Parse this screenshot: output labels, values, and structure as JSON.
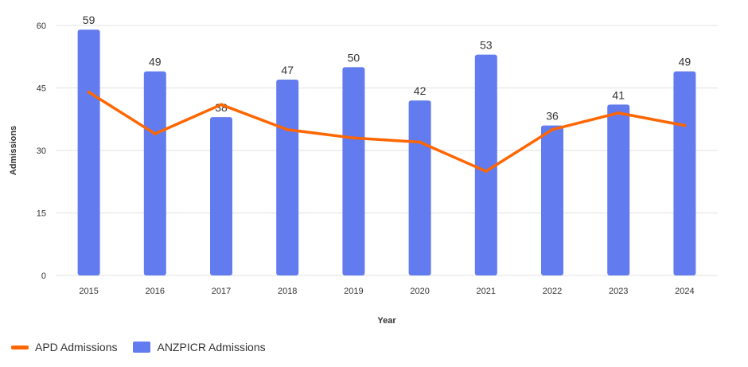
{
  "chart_data": {
    "type": "bar+line",
    "categories": [
      "2015",
      "2016",
      "2017",
      "2018",
      "2019",
      "2020",
      "2021",
      "2022",
      "2023",
      "2024"
    ],
    "series": [
      {
        "name": "ANZPICR Admissions",
        "type": "bar",
        "color": "#627bee",
        "values": [
          59,
          49,
          38,
          47,
          50,
          42,
          53,
          36,
          41,
          49
        ],
        "labels": [
          "59",
          "49",
          "38",
          "47",
          "50",
          "42",
          "53",
          "36",
          "41",
          "49"
        ]
      },
      {
        "name": "APD Admissions",
        "type": "line",
        "color": "#ff6600",
        "values": [
          44,
          34,
          41,
          35,
          33,
          32,
          25,
          35,
          39,
          36
        ]
      }
    ],
    "xlabel": "Year",
    "ylabel": "Admissions",
    "ylim": [
      0,
      60
    ],
    "yticks": [
      "0",
      "15",
      "30",
      "45",
      "60"
    ],
    "grid": true,
    "legend_position": "bottom-left"
  }
}
